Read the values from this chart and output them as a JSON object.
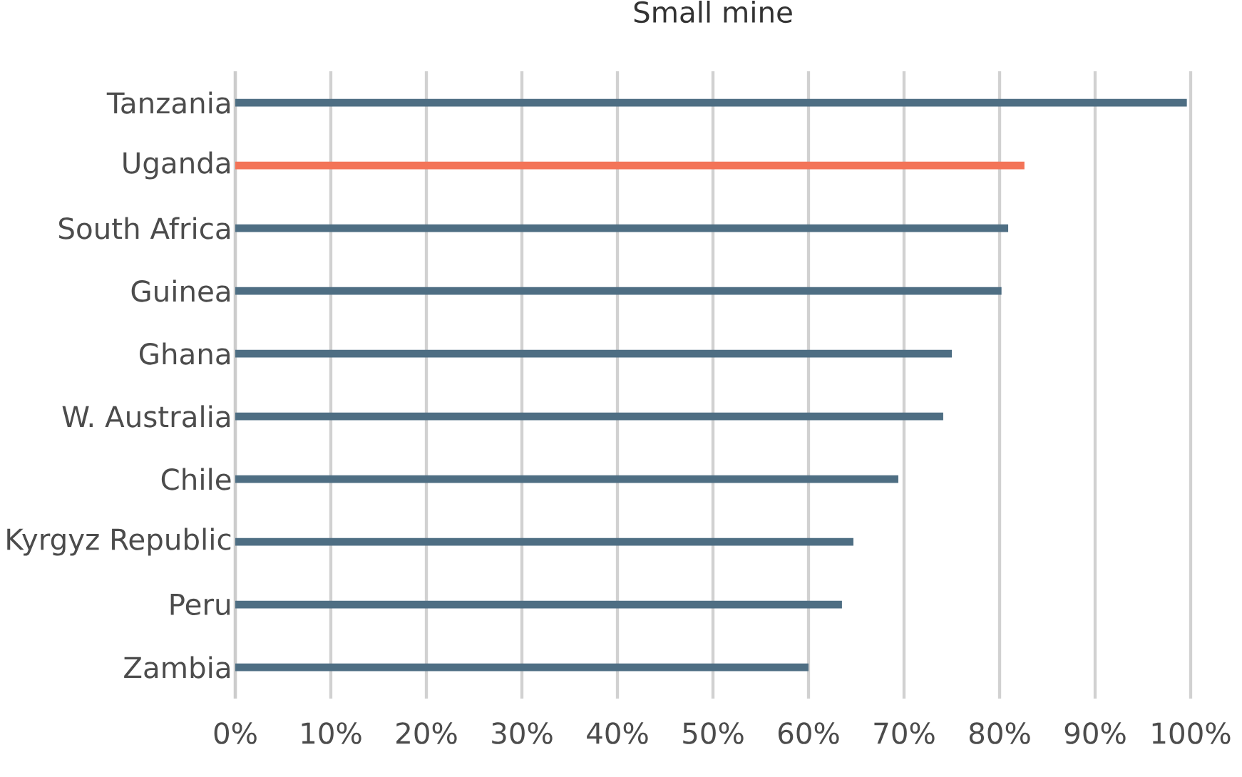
{
  "chart_data": {
    "type": "bar",
    "orientation": "horizontal",
    "title": "Small mine",
    "categories": [
      "Tanzania",
      "Uganda",
      "South Africa",
      "Guinea",
      "Ghana",
      "W. Australia",
      "Chile",
      "Kyrgyz Republic",
      "Peru",
      "Zambia"
    ],
    "values": [
      99.6,
      82.6,
      80.9,
      80.2,
      75.0,
      74.1,
      69.4,
      64.7,
      63.5,
      60.0
    ],
    "colors": [
      "#4e6e83",
      "#f37458",
      "#4e6e83",
      "#4e6e83",
      "#4e6e83",
      "#4e6e83",
      "#4e6e83",
      "#4e6e83",
      "#4e6e83",
      "#4e6e83"
    ],
    "xlim": [
      0,
      100
    ],
    "xticks": [
      {
        "value": 0,
        "label": "0%"
      },
      {
        "value": 10,
        "label": "10%"
      },
      {
        "value": 20,
        "label": "20%"
      },
      {
        "value": 30,
        "label": "30%"
      },
      {
        "value": 40,
        "label": "40%"
      },
      {
        "value": 50,
        "label": "50%"
      },
      {
        "value": 60,
        "label": "60%"
      },
      {
        "value": 70,
        "label": "70%"
      },
      {
        "value": 80,
        "label": "80%"
      },
      {
        "value": 90,
        "label": "90%"
      },
      {
        "value": 100,
        "label": "100%"
      }
    ],
    "grid": "x"
  }
}
